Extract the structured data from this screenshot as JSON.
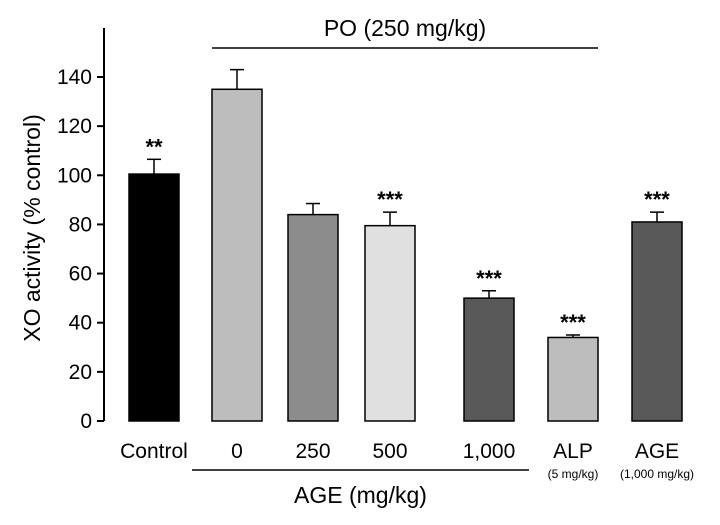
{
  "chart_data": {
    "type": "bar",
    "ylabel": "XO activity (% control)",
    "ylim": [
      0,
      150
    ],
    "yticks": [
      0,
      20,
      40,
      60,
      80,
      100,
      120,
      140
    ],
    "categories": [
      {
        "label": "Control",
        "sublabel": "",
        "value": 100.5,
        "error": 6,
        "significance": "**",
        "color": "#000000"
      },
      {
        "label": "0",
        "sublabel": "",
        "value": 135,
        "error": 8,
        "significance": "",
        "color": "#bdbdbd"
      },
      {
        "label": "250",
        "sublabel": "",
        "value": 84,
        "error": 4.5,
        "significance": "",
        "color": "#8c8c8c"
      },
      {
        "label": "500",
        "sublabel": "",
        "value": 79.5,
        "error": 5.5,
        "significance": "***",
        "color": "#e0e0e0"
      },
      {
        "label": "1,000",
        "sublabel": "",
        "value": 50,
        "error": 3,
        "significance": "***",
        "color": "#595959"
      },
      {
        "label": "ALP",
        "sublabel": "(5 mg/kg)",
        "value": 34,
        "error": 1,
        "significance": "***",
        "color": "#bdbdbd"
      },
      {
        "label": "AGE",
        "sublabel": "(1,000 mg/kg)",
        "value": 81,
        "error": 4,
        "significance": "***",
        "color": "#595959"
      }
    ],
    "group_top": {
      "label": "PO (250 mg/kg)",
      "from_index": 1,
      "to_index": 5
    },
    "group_bottom": {
      "label": "AGE (mg/kg)",
      "from_index": 1,
      "to_index": 4
    }
  }
}
